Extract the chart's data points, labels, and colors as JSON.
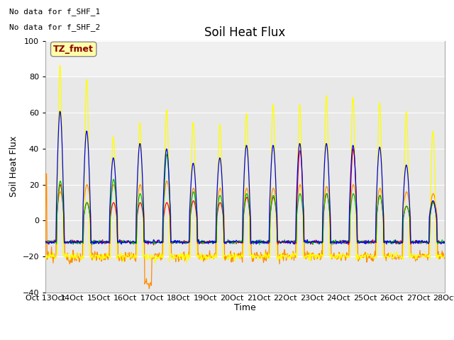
{
  "title": "Soil Heat Flux",
  "ylabel": "Soil Heat Flux",
  "xlabel": "Time",
  "ylim": [
    -40,
    100
  ],
  "yticks": [
    -40,
    -20,
    0,
    20,
    40,
    60,
    80,
    100
  ],
  "no_data_text": [
    "No data for f_SHF_1",
    "No data for f_SHF_2"
  ],
  "tz_label": "TZ_fmet",
  "x_tick_labels": [
    "Oct 13",
    "Oct 14",
    "Oct 15",
    "Oct 16",
    "Oct 17",
    "Oct 18",
    "Oct 19",
    "Oct 20",
    "Oct 21",
    "Oct 22",
    "Oct 23",
    "Oct 24",
    "Oct 25",
    "Oct 26",
    "Oct 27",
    "Oct 28"
  ],
  "series_colors": {
    "SHF1": "#ff0000",
    "SHF2": "#ff8c00",
    "SHF3": "#ffff00",
    "SHF4": "#00bb00",
    "SHF5": "#0000ee"
  },
  "bg_color": "#ffffff",
  "plot_bg_color": "#e8e8e8",
  "plot_upper_bg": "#d0d0d0",
  "grid_color": "#ffffff",
  "title_fontsize": 12,
  "label_fontsize": 9,
  "tick_fontsize": 8
}
